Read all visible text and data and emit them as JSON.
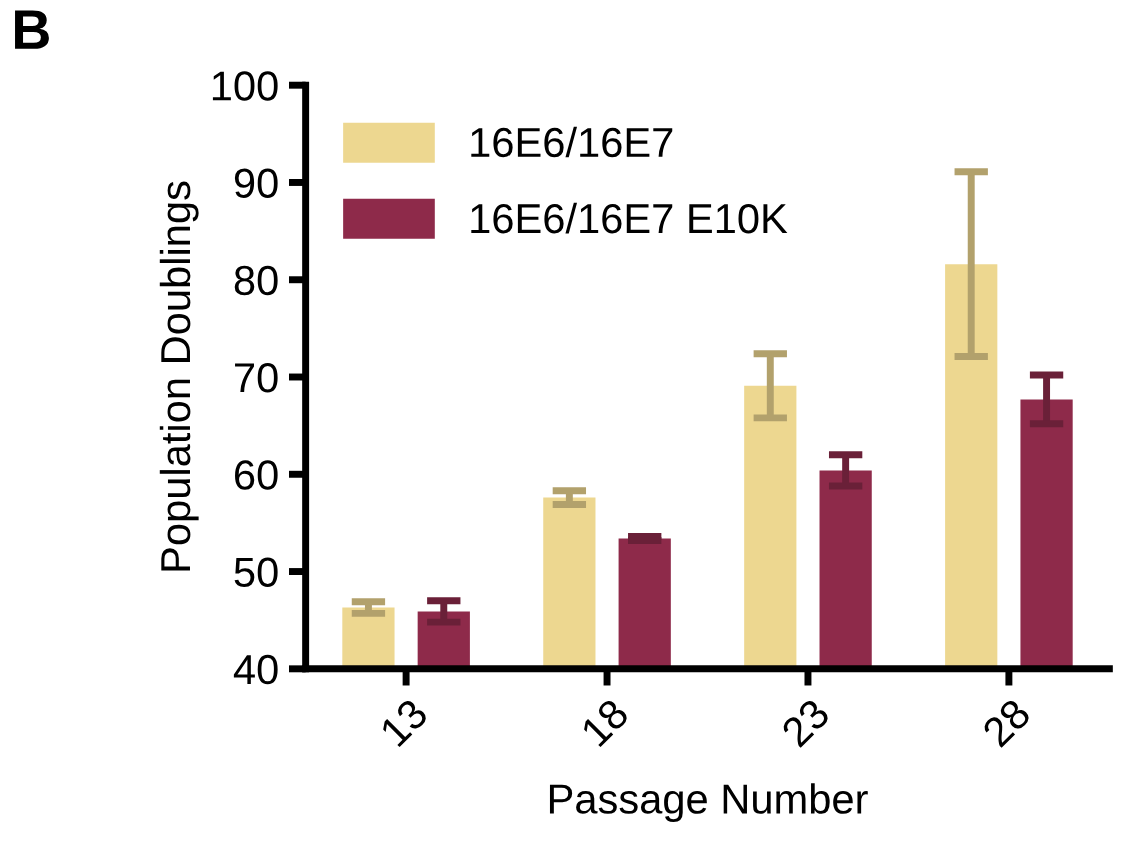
{
  "chart_data": {
    "type": "bar",
    "xlabel": "Passage Number",
    "ylabel": "Population Doublings",
    "categories": [
      "13",
      "18",
      "23",
      "28"
    ],
    "series": [
      {
        "name": "16E6/16E7",
        "color": "#edd790",
        "values": [
          46.3,
          57.6,
          69.1,
          81.6
        ],
        "errors": [
          0.6,
          0.7,
          3.3,
          9.5
        ]
      },
      {
        "name": "16E6/16E7 E10K",
        "color": "#8e2a4a",
        "values": [
          45.9,
          53.4,
          60.4,
          67.7
        ],
        "errors": [
          1.1,
          0.2,
          1.6,
          2.5
        ]
      }
    ],
    "ylim": [
      40,
      100
    ],
    "yticks": [
      40,
      50,
      60,
      70,
      80,
      90,
      100
    ],
    "grid": false,
    "legend": "top left",
    "annotations": [
      "B"
    ]
  }
}
